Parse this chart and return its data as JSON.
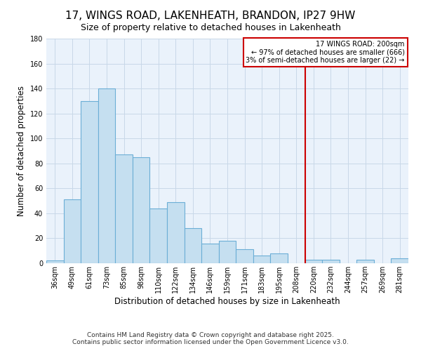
{
  "title": "17, WINGS ROAD, LAKENHEATH, BRANDON, IP27 9HW",
  "subtitle": "Size of property relative to detached houses in Lakenheath",
  "xlabel": "Distribution of detached houses by size in Lakenheath",
  "ylabel": "Number of detached properties",
  "bar_labels": [
    "36sqm",
    "49sqm",
    "61sqm",
    "73sqm",
    "85sqm",
    "98sqm",
    "110sqm",
    "122sqm",
    "134sqm",
    "146sqm",
    "159sqm",
    "171sqm",
    "183sqm",
    "195sqm",
    "208sqm",
    "220sqm",
    "232sqm",
    "244sqm",
    "257sqm",
    "269sqm",
    "281sqm"
  ],
  "bar_values": [
    2,
    51,
    130,
    140,
    87,
    85,
    44,
    49,
    28,
    16,
    18,
    11,
    6,
    8,
    0,
    3,
    3,
    0,
    3,
    0,
    4
  ],
  "bar_color": "#c5dff0",
  "bar_edge_color": "#6baed6",
  "plot_bg_color": "#eaf2fb",
  "ylim": [
    0,
    180
  ],
  "yticks": [
    0,
    20,
    40,
    60,
    80,
    100,
    120,
    140,
    160,
    180
  ],
  "vline_x": 14.5,
  "vline_color": "#cc0000",
  "annotation_title": "17 WINGS ROAD: 200sqm",
  "annotation_line1": "← 97% of detached houses are smaller (666)",
  "annotation_line2": "3% of semi-detached houses are larger (22) →",
  "annotation_box_facecolor": "#ffffff",
  "annotation_box_edgecolor": "#cc0000",
  "footnote1": "Contains HM Land Registry data © Crown copyright and database right 2025.",
  "footnote2": "Contains public sector information licensed under the Open Government Licence v3.0.",
  "background_color": "#ffffff",
  "grid_color": "#c8d8e8",
  "title_fontsize": 11,
  "subtitle_fontsize": 9,
  "axis_label_fontsize": 8.5,
  "tick_fontsize": 7,
  "footnote_fontsize": 6.5
}
